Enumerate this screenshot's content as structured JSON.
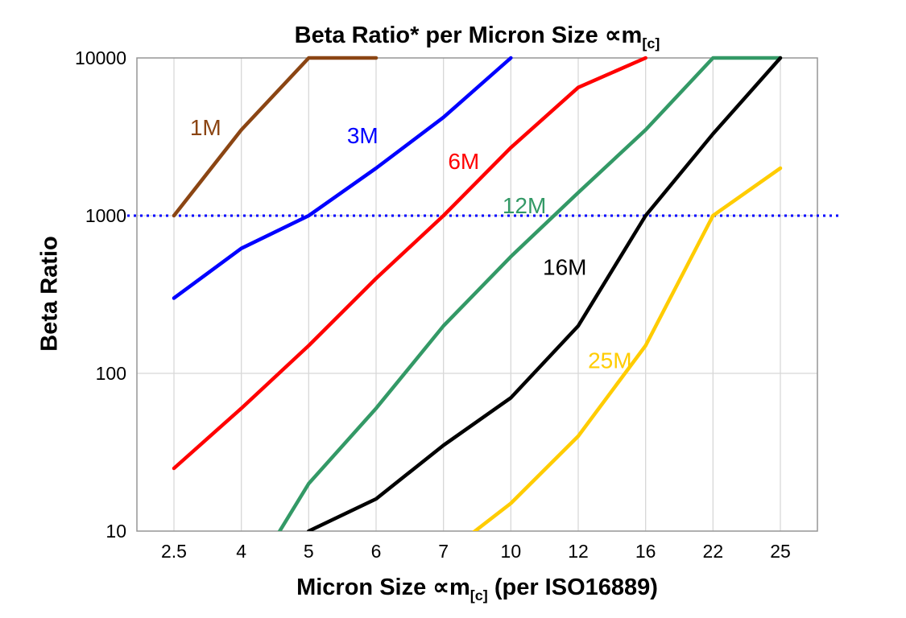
{
  "title": {
    "prefix": "Beta Ratio* per Micron Size ",
    "symbol": "∝m",
    "sub": "[c]"
  },
  "y_axis": {
    "title": "Beta Ratio",
    "ticks": [
      "10",
      "100",
      "1000",
      "10000"
    ]
  },
  "x_axis": {
    "prefix": "Micron Size ",
    "symbol": "∝m",
    "sub": "[c]",
    "suffix": " (per ISO16889)"
  },
  "chart_data": {
    "type": "line",
    "x_scale": "categorical",
    "y_scale": "log",
    "ylim": [
      10,
      10000
    ],
    "grid": true,
    "categories": [
      "2.5",
      "4",
      "5",
      "6",
      "7",
      "10",
      "12",
      "16",
      "22",
      "25"
    ],
    "series": [
      {
        "name": "1M",
        "color": "#8B4513",
        "values": [
          1000,
          3500,
          10000,
          10000,
          null,
          null,
          null,
          null,
          null,
          null
        ]
      },
      {
        "name": "3M",
        "color": "#0000FF",
        "values": [
          300,
          620,
          1000,
          2000,
          4200,
          10000,
          null,
          null,
          null,
          null
        ]
      },
      {
        "name": "6M",
        "color": "#FF0000",
        "values": [
          25,
          60,
          150,
          400,
          1000,
          2700,
          6500,
          10000,
          null,
          null
        ]
      },
      {
        "name": "12M",
        "color": "#339966",
        "values": [
          null,
          4,
          20,
          60,
          200,
          550,
          1400,
          3500,
          10000,
          10000
        ]
      },
      {
        "name": "16M",
        "color": "#000000",
        "values": [
          null,
          null,
          10,
          16,
          35,
          70,
          200,
          1000,
          3300,
          10000
        ]
      },
      {
        "name": "25M",
        "color": "#FFCC00",
        "values": [
          null,
          null,
          null,
          null,
          7,
          15,
          40,
          150,
          1000,
          2000
        ]
      }
    ],
    "series_labels": [
      {
        "text": "1M",
        "color": "#8B4513",
        "xi": 0.47,
        "y": 3600
      },
      {
        "text": "3M",
        "color": "#0000FF",
        "xi": 2.8,
        "y": 3200
      },
      {
        "text": "6M",
        "color": "#FF0000",
        "xi": 4.3,
        "y": 2200
      },
      {
        "text": "12M",
        "color": "#339966",
        "xi": 5.2,
        "y": 1150
      },
      {
        "text": "16M",
        "color": "#000000",
        "xi": 5.8,
        "y": 470
      },
      {
        "text": "25M",
        "color": "#FFCC00",
        "xi": 6.47,
        "y": 120
      }
    ],
    "reference_line": {
      "y": 1000,
      "color": "#0000FF",
      "style": "dotted"
    },
    "grid_color": "#D8D8D8",
    "border_color": "#969696",
    "background": "#FFFFFF"
  }
}
